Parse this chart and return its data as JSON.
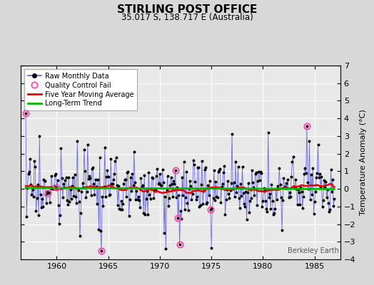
{
  "title": "STIRLING POST OFFICE",
  "subtitle": "35.017 S, 138.717 E (Australia)",
  "ylabel": "Temperature Anomaly (°C)",
  "watermark": "Berkeley Earth",
  "xlim": [
    1956.5,
    1987.5
  ],
  "ylim": [
    -4,
    7
  ],
  "yticks": [
    -4,
    -3,
    -2,
    -1,
    0,
    1,
    2,
    3,
    4,
    5,
    6,
    7
  ],
  "xticks": [
    1960,
    1965,
    1970,
    1975,
    1980,
    1985
  ],
  "bg_color": "#d8d8d8",
  "plot_bg_color": "#e8e8e8",
  "raw_line_color": "#5555dd",
  "raw_dot_color": "#000000",
  "qc_fail_color": "#ff44aa",
  "moving_avg_color": "#ee0000",
  "trend_color": "#00bb00",
  "grid_color": "#ffffff",
  "seed": 17,
  "start_year": 1957,
  "end_year": 1986,
  "qc_fail_indices": [
    0,
    26,
    36,
    88,
    174,
    177,
    179,
    215,
    327
  ],
  "qc_fail_values": [
    4.3,
    -0.25,
    0.1,
    -3.5,
    1.05,
    -1.65,
    -3.15,
    -1.15,
    3.55
  ]
}
